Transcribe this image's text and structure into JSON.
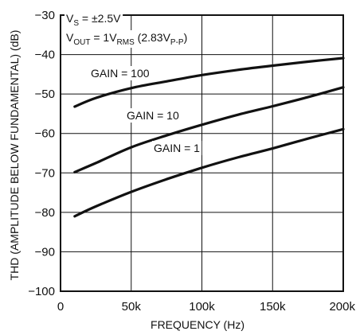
{
  "chart_data": {
    "type": "line",
    "xlabel": "FREQUENCY (Hz)",
    "ylabel": "THD (AMPLITUDE BELOW FUNDAMENTAL) (dB)",
    "xlim": [
      0,
      200000
    ],
    "ylim": [
      -100,
      -30
    ],
    "x_ticks": [
      0,
      50000,
      100000,
      150000,
      200000
    ],
    "x_tick_labels": [
      "0",
      "50k",
      "100k",
      "150k",
      "200k"
    ],
    "y_ticks": [
      -30,
      -40,
      -50,
      -60,
      -70,
      -80,
      -90,
      -100
    ],
    "y_tick_labels": [
      "−30",
      "−40",
      "−50",
      "−60",
      "−70",
      "−80",
      "−90",
      "−100"
    ],
    "grid": true,
    "conditions": {
      "vs": {
        "main": "V",
        "sub": "S",
        "rest": " = ±2.5V"
      },
      "vout": {
        "v": "V",
        "sub1": "OUT",
        "mid": " = 1V",
        "sub2": "RMS",
        "paren_open": " (2.83V",
        "sub3": "P-P",
        "paren_close": ")"
      }
    },
    "series": [
      {
        "name": "GAIN = 100",
        "x": [
          10000,
          25000,
          50000,
          75000,
          100000,
          125000,
          150000,
          175000,
          200000
        ],
        "y": [
          -53.2,
          -51.0,
          -48.5,
          -46.8,
          -45.2,
          -43.9,
          -42.8,
          -41.8,
          -40.9
        ]
      },
      {
        "name": "GAIN = 10",
        "x": [
          10000,
          25000,
          50000,
          75000,
          100000,
          125000,
          150000,
          175000,
          200000
        ],
        "y": [
          -69.8,
          -67.5,
          -63.5,
          -60.5,
          -57.8,
          -55.3,
          -53.1,
          -50.8,
          -48.3
        ]
      },
      {
        "name": "GAIN = 1",
        "x": [
          10000,
          25000,
          50000,
          75000,
          100000,
          125000,
          150000,
          175000,
          200000
        ],
        "y": [
          -81.0,
          -78.5,
          -74.8,
          -71.6,
          -68.7,
          -66.1,
          -63.8,
          -61.3,
          -58.9
        ]
      }
    ]
  }
}
